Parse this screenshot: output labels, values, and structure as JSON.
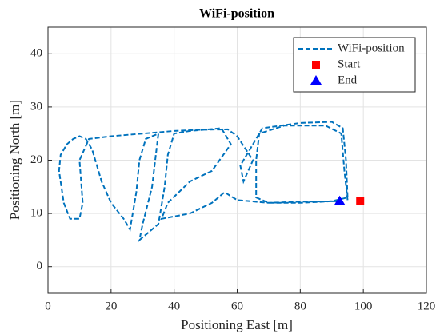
{
  "chart_data": {
    "type": "line",
    "title": "WiFi-position",
    "xlabel": "Positioning East [m]",
    "ylabel": "Positioning North [m]",
    "xlim": [
      0,
      120
    ],
    "ylim": [
      -5,
      45
    ],
    "xticks": [
      0,
      20,
      40,
      60,
      80,
      100,
      120
    ],
    "yticks": [
      0,
      10,
      20,
      30,
      40
    ],
    "grid": true,
    "legend": "upper right",
    "series": [
      {
        "name": "WiFi-position",
        "color": "#0072BD",
        "style": "dashed",
        "marker": "none",
        "x": [
          95,
          94,
          93,
          88,
          75,
          67,
          66,
          66,
          70,
          80,
          90,
          95,
          94.5,
          93.5,
          90,
          80,
          68,
          64,
          61,
          62,
          65,
          60,
          57,
          48,
          40,
          30,
          20,
          13,
          10,
          11,
          10,
          7,
          5,
          3.5,
          4,
          6,
          8,
          10,
          12,
          14,
          17,
          20,
          24,
          26,
          28,
          29,
          31,
          35,
          34,
          33,
          30,
          29,
          31,
          35,
          37,
          38,
          40,
          45,
          55,
          58,
          52,
          45,
          38,
          36,
          45,
          52,
          56,
          60,
          70,
          80,
          92.5
        ],
        "values": [
          12.5,
          18,
          25,
          26.5,
          26.5,
          25,
          20,
          13,
          12,
          12,
          12.3,
          13,
          20,
          26,
          27.2,
          27,
          26,
          22,
          19,
          16,
          20,
          24.5,
          25.8,
          25.7,
          25.5,
          25,
          24.5,
          24,
          20,
          12,
          9,
          9,
          12,
          18,
          21,
          23,
          24,
          24.5,
          24,
          22,
          16,
          12,
          9,
          7,
          14,
          20,
          24,
          25,
          20,
          15,
          8,
          5,
          6,
          8,
          15,
          21,
          25,
          25.5,
          26,
          23,
          18,
          16,
          12,
          9,
          10,
          12,
          14,
          12.5,
          12,
          12.2,
          12.3
        ]
      },
      {
        "name": "Start",
        "color": "#FF0000",
        "marker": "square",
        "x": [
          99
        ],
        "values": [
          12.3
        ]
      },
      {
        "name": "End",
        "color": "#0000FF",
        "marker": "triangle",
        "x": [
          92.5
        ],
        "values": [
          12.3
        ]
      }
    ]
  }
}
